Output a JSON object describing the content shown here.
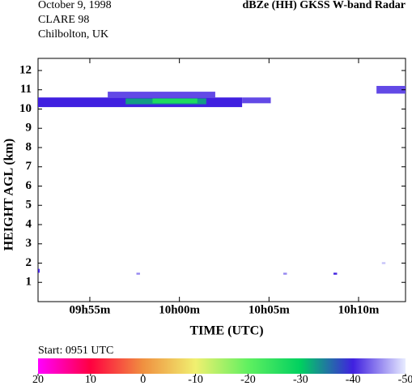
{
  "chart_data": {
    "type": "heatmap",
    "header": [
      "October  9, 1998",
      "CLARE 98",
      "Chilbolton, UK"
    ],
    "title": "dBZe (HH)   GKSS  W-band Radar",
    "x_label": "TIME (UTC)",
    "y_label": "HEIGHT AGL (km)",
    "start_label": "Start: 0951 UTC",
    "xlim": [
      52.11,
      72.62
    ],
    "xticks": [
      {
        "value": 55,
        "label": "09h55m"
      },
      {
        "value": 60,
        "label": "10h00m"
      },
      {
        "value": 65,
        "label": "10h05m"
      },
      {
        "value": 70,
        "label": "10h10m"
      }
    ],
    "ylim": [
      0,
      12.63
    ],
    "yticks": [
      1,
      2,
      3,
      4,
      5,
      6,
      7,
      8,
      9,
      10,
      11,
      12
    ],
    "echoes": [
      {
        "t0": 52.11,
        "t1": 63.5,
        "h0": 10.1,
        "h1": 10.6,
        "dbz": -40
      },
      {
        "t0": 56,
        "t1": 62,
        "h0": 10.6,
        "h1": 10.9,
        "dbz": -42
      },
      {
        "t0": 63.5,
        "t1": 65.1,
        "h0": 10.3,
        "h1": 10.6,
        "dbz": -42
      },
      {
        "t0": 57,
        "t1": 61.5,
        "h0": 10.25,
        "h1": 10.55,
        "dbz": -33
      },
      {
        "t0": 58.5,
        "t1": 61,
        "h0": 10.3,
        "h1": 10.55,
        "dbz": -27
      },
      {
        "t0": 71,
        "t1": 72.62,
        "h0": 10.8,
        "h1": 11.2,
        "dbz": -42
      },
      {
        "t0": 52.11,
        "t1": 52.2,
        "h0": 1.5,
        "h1": 1.7,
        "dbz": -40
      },
      {
        "t0": 57.6,
        "t1": 57.8,
        "h0": 1.4,
        "h1": 1.5,
        "dbz": -45
      },
      {
        "t0": 65.8,
        "t1": 66,
        "h0": 1.4,
        "h1": 1.5,
        "dbz": -45
      },
      {
        "t0": 68.6,
        "t1": 68.8,
        "h0": 1.4,
        "h1": 1.5,
        "dbz": -40
      },
      {
        "t0": 71.3,
        "t1": 71.5,
        "h0": 1.95,
        "h1": 2.05,
        "dbz": -48
      }
    ],
    "colorbar": {
      "lim": [
        20,
        -50
      ],
      "ticks": [
        20,
        10,
        0,
        -10,
        -20,
        -30,
        -40,
        -50
      ],
      "colors": [
        "#ff00ff",
        "#ff0040",
        "#f09040",
        "#f0f070",
        "#60f060",
        "#00d060",
        "#4020e0",
        "#e8ecff"
      ]
    }
  }
}
